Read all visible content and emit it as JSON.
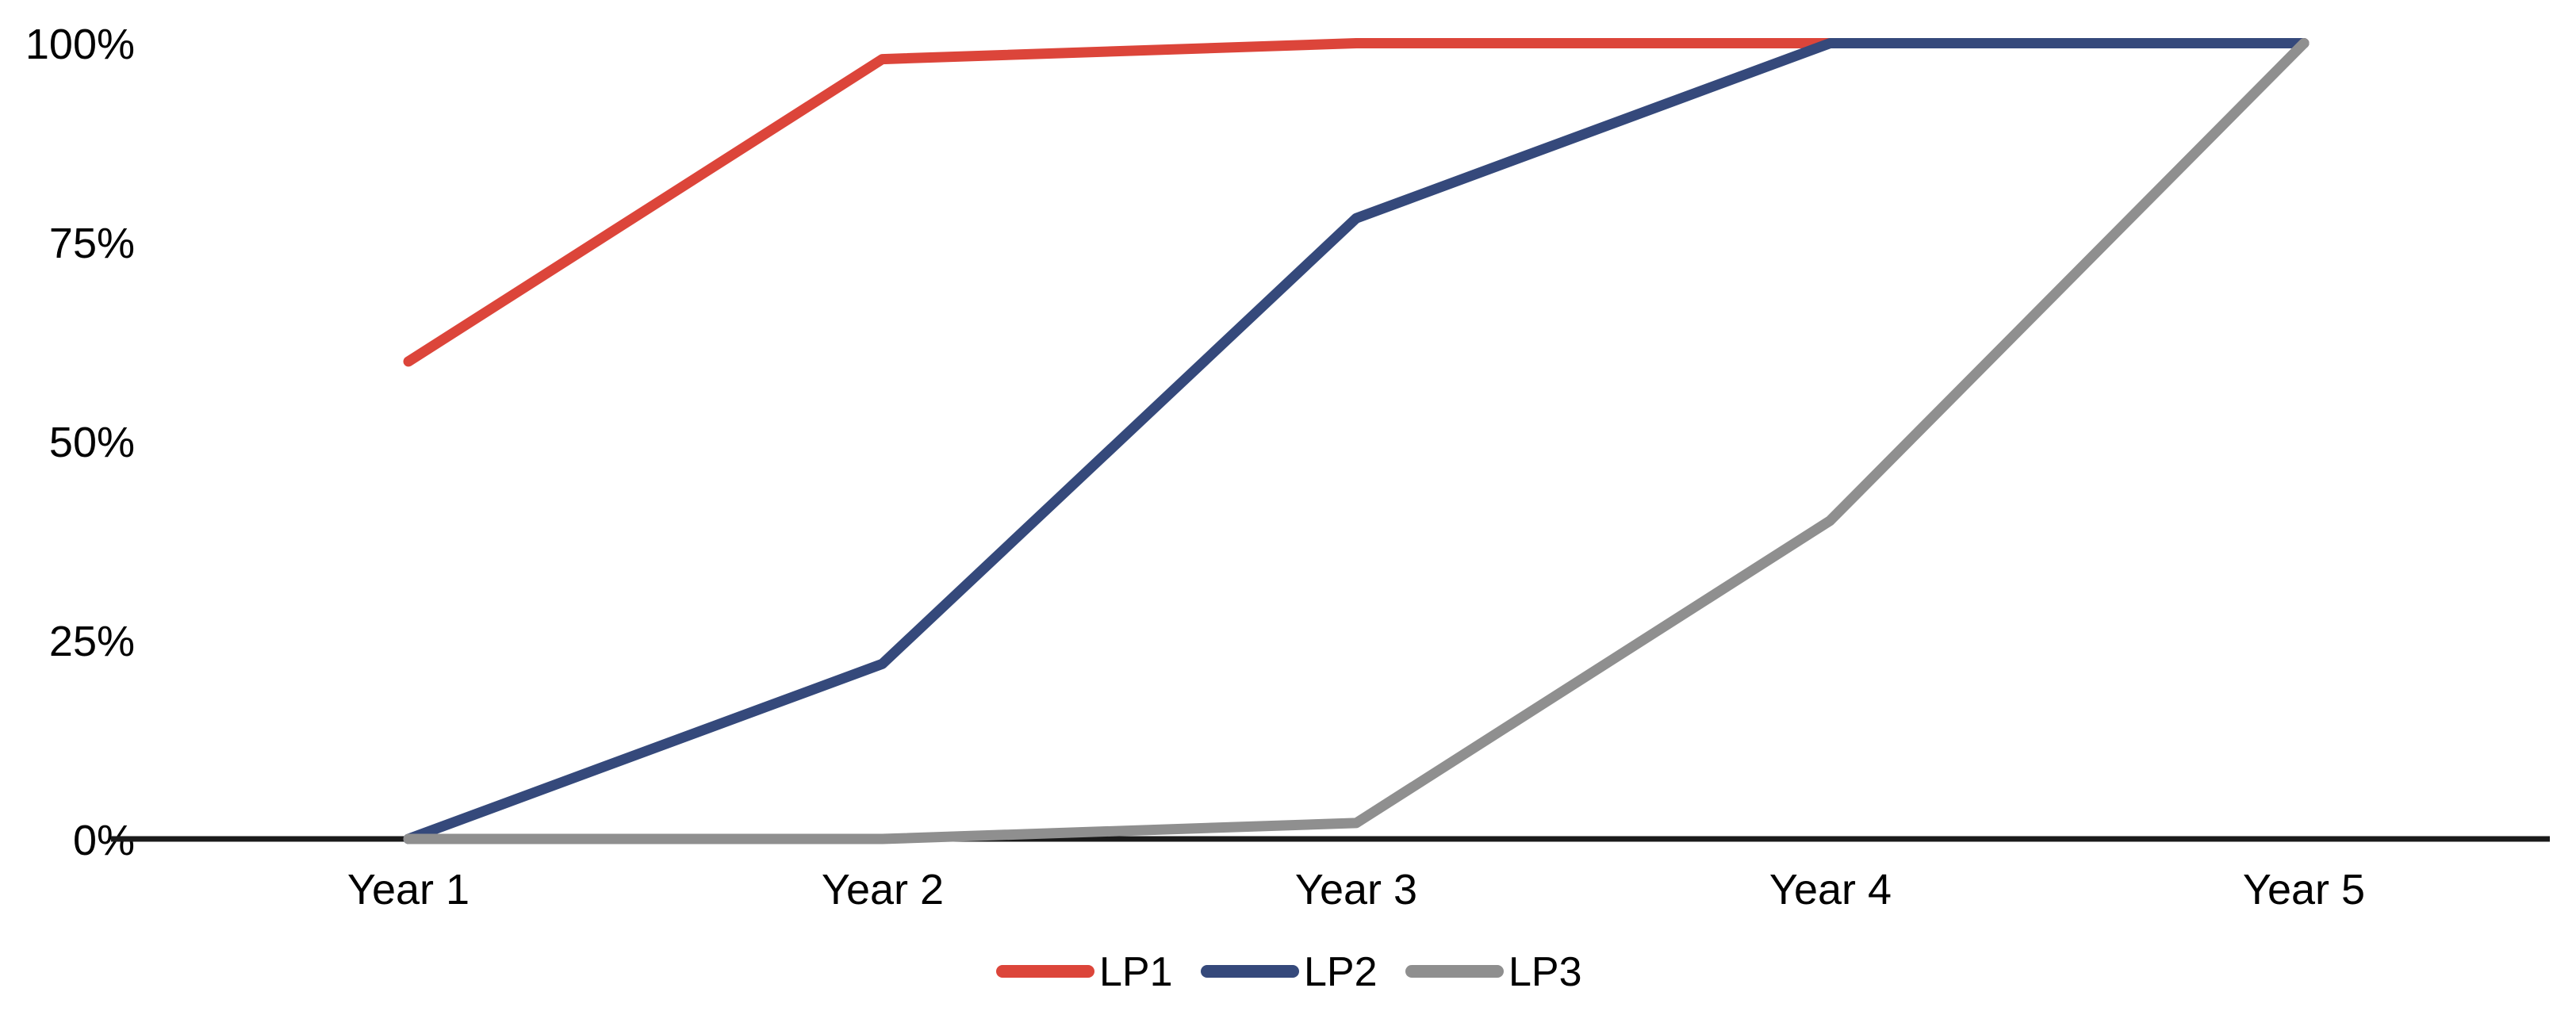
{
  "chart_data": {
    "type": "line",
    "title": "",
    "xlabel": "",
    "ylabel": "",
    "categories": [
      "Year 1",
      "Year 2",
      "Year 3",
      "Year 4",
      "Year 5"
    ],
    "series": [
      {
        "name": "LP1",
        "color": "#DC453A",
        "values": [
          60,
          98,
          100,
          100,
          100
        ]
      },
      {
        "name": "LP2",
        "color": "#35497B",
        "values": [
          0,
          22,
          78,
          100,
          100
        ]
      },
      {
        "name": "LP3",
        "color": "#8F8F8F",
        "values": [
          0,
          0,
          2,
          40,
          100
        ]
      }
    ],
    "ylim": [
      0,
      100
    ],
    "y_ticks": [
      "0%",
      "25%",
      "50%",
      "75%",
      "100%"
    ],
    "grid": false,
    "legend_position": "bottom-center",
    "axis_color": "#1a1a1a",
    "text_color": "#000000",
    "background_color": "#ffffff"
  }
}
